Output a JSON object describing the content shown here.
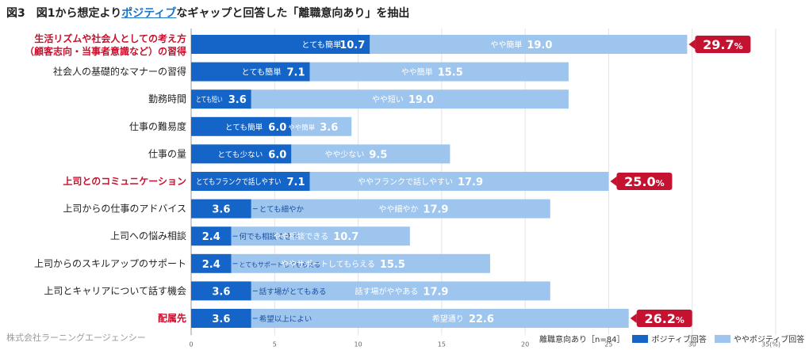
{
  "figure": {
    "title_prefix": "図3　図1から想定より",
    "title_highlight": "ポジティブ",
    "title_suffix": "なギャップと回答した「離職意向あり」を抽出",
    "source": "株式会社ラーニングエージェンシー",
    "legend_group": "離職意向あり［n=84］",
    "colors": {
      "dark": "#1565c8",
      "light": "#9ec5ee",
      "highlight_label": "#c8102e",
      "badge": "#c41230"
    }
  },
  "chart_data": {
    "type": "bar",
    "orientation": "horizontal",
    "stacked": true,
    "xlim": [
      0,
      35
    ],
    "xticks": [
      0,
      5,
      10,
      15,
      20,
      25,
      30,
      35
    ],
    "xtick_labels": [
      "0",
      "5",
      "10",
      "15",
      "20",
      "25",
      "30",
      "35(%)"
    ],
    "grid": true,
    "legend_position": "bottom-right",
    "series": [
      {
        "name": "ポジティブ回答",
        "color": "#1565c8",
        "values": [
          10.7,
          7.1,
          3.6,
          6.0,
          6.0,
          7.1,
          3.6,
          2.4,
          2.4,
          3.6,
          3.6
        ]
      },
      {
        "name": "ややポジティブ回答",
        "color": "#9ec5ee",
        "values": [
          19.0,
          15.5,
          19.0,
          3.6,
          9.5,
          17.9,
          17.9,
          10.7,
          15.5,
          17.9,
          22.6
        ]
      }
    ],
    "categories": [
      {
        "line1": "生活リズムや社会人としての考え方",
        "line2": "（顧客志向・当事者意識など）の習得",
        "highlight": true,
        "dark_label": "とても簡単",
        "light_label": "やや簡単",
        "dark_label_pos": "inside",
        "total": "29.7",
        "total_suffix": "%"
      },
      {
        "line1": "社会人の基礎的なマナーの習得",
        "highlight": false,
        "dark_label": "とても簡単",
        "light_label": "やや簡単",
        "dark_label_pos": "inside"
      },
      {
        "line1": "勤務時間",
        "highlight": false,
        "dark_label": "とても短い",
        "light_label": "やや短い",
        "dark_label_pos": "inside"
      },
      {
        "line1": "仕事の難易度",
        "highlight": false,
        "dark_label": "とても簡単",
        "light_label": "やや簡単",
        "dark_label_pos": "inside"
      },
      {
        "line1": "仕事の量",
        "highlight": false,
        "dark_label": "とても少ない",
        "light_label": "やや少ない",
        "dark_label_pos": "inside"
      },
      {
        "line1": "上司とのコミュニケーション",
        "highlight": true,
        "dark_label": "とてもフランクで話しやすい",
        "light_label": "ややフランクで話しやすい",
        "dark_label_pos": "inside",
        "total": "25.0",
        "total_suffix": "%"
      },
      {
        "line1": "上司からの仕事のアドバイス",
        "highlight": false,
        "dark_label": "とても細やか",
        "light_label": "やや細やか",
        "dark_label_pos": "outside"
      },
      {
        "line1": "上司への悩み相談",
        "highlight": false,
        "dark_label": "何でも相談できる",
        "light_label": "やや相談できる",
        "dark_label_pos": "outside"
      },
      {
        "line1": "上司からのスキルアップのサポート",
        "highlight": false,
        "dark_label": "とてもサポートしてもらえる",
        "light_label": "ややサポートしてもらえる",
        "dark_label_pos": "outside"
      },
      {
        "line1": "上司とキャリアについて話す機会",
        "highlight": false,
        "dark_label": "話す場がとてもある",
        "light_label": "話す場がややある",
        "dark_label_pos": "outside"
      },
      {
        "line1": "配属先",
        "highlight": true,
        "dark_label": "希望以上によい",
        "light_label": "希望通り",
        "dark_label_pos": "outside",
        "total": "26.2",
        "total_suffix": "%"
      }
    ]
  }
}
